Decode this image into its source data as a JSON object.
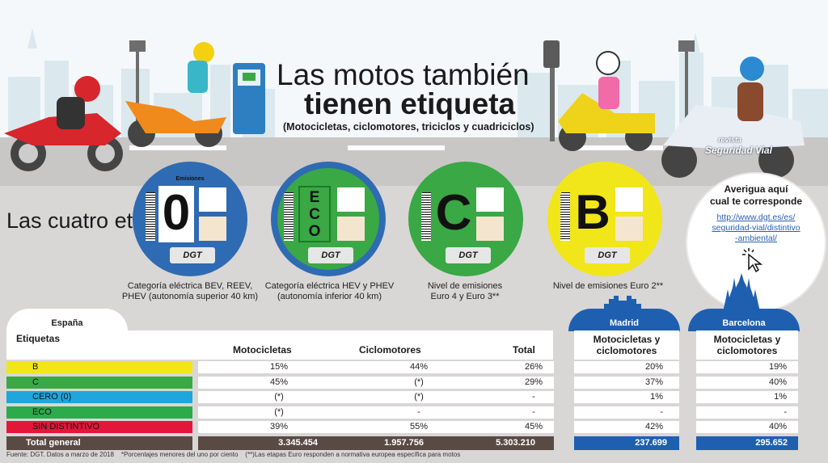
{
  "header": {
    "title_line1": "Las motos también",
    "title_line2": "tienen etiqueta",
    "subtitle": "(Motocicletas, ciclomotores, triciclos y cuadriciclos)"
  },
  "logo": {
    "line1": "revista",
    "line2": "Seguridad Vial"
  },
  "section_title": "Las cuatro etiquetas",
  "badges": [
    {
      "letter": "0",
      "color": "#2e6bb2",
      "inner": "#2e6bb2",
      "top_label": "Emisiones",
      "dgt": "DGT",
      "caption_1": "Categoría eléctrica BEV, REEV,",
      "caption_2": "PHEV (autonomía superior 40 km)"
    },
    {
      "letter": "ECO",
      "color": "#2e6bb2",
      "inner": "#39a845",
      "top_label": "",
      "dgt": "DGT",
      "caption_1": "Categoría eléctrica HEV y PHEV",
      "caption_2": "(autonomía inferior 40 km)"
    },
    {
      "letter": "C",
      "color": "#39a845",
      "inner": "#39a845",
      "top_label": "",
      "dgt": "DGT",
      "caption_1": "Nivel de emisiones",
      "caption_2": "Euro 4 y Euro 3**"
    },
    {
      "letter": "B",
      "color": "#f1e61a",
      "inner": "#f1e61a",
      "top_label": "",
      "dgt": "DGT",
      "caption_1": "Nivel de emisiones Euro 2**",
      "caption_2": ""
    }
  ],
  "info": {
    "question_1": "Averigua aquí",
    "question_2": "cual te corresponde",
    "link_1": "http://www.dgt.es/es/",
    "link_2": "seguridad-vial/distintivo",
    "link_3": "-ambiental/"
  },
  "tabs": {
    "spain": "España",
    "madrid": "Madrid",
    "barcelona": "Barcelona"
  },
  "table": {
    "label_header": "Etiquetas",
    "col_moto": "Motocicletas",
    "col_ciclo": "Ciclomotores",
    "col_total": "Total",
    "madrid_header_1": "Motocicletas y",
    "madrid_header_2": "ciclomotores",
    "barcelona_header_1": "Motocicletas y",
    "barcelona_header_2": "ciclomotores",
    "rows": [
      {
        "label": "B",
        "color": "#f1e61a",
        "moto": "15%",
        "ciclo": "44%",
        "total": "26%",
        "madrid": "20%",
        "barcelona": "19%"
      },
      {
        "label": "C",
        "color": "#39a845",
        "moto": "45%",
        "ciclo": "(*)",
        "total": "29%",
        "madrid": "37%",
        "barcelona": "40%"
      },
      {
        "label": "CERO (0)",
        "color": "#1fa6dd",
        "moto": "(*)",
        "ciclo": "(*)",
        "total": "-",
        "madrid": "1%",
        "barcelona": "1%"
      },
      {
        "label": "ECO",
        "color": "#2bab4a",
        "moto": "(*)",
        "ciclo": "-",
        "total": "-",
        "madrid": "-",
        "barcelona": "-"
      },
      {
        "label": "SIN DISTINTIVO",
        "color": "#e3173a",
        "moto": "39%",
        "ciclo": "55%",
        "total": "45%",
        "madrid": "42%",
        "barcelona": "40%"
      }
    ],
    "total": {
      "label": "Total general",
      "moto": "3.345.454",
      "ciclo": "1.957.756",
      "total": "5.303.210",
      "madrid": "237.699",
      "barcelona": "295.652"
    }
  },
  "footnote": {
    "source": "Fuente: DGT. Datos a marzo de 2018",
    "note1": "*Porcentajes menores del uno por ciento",
    "note2": "(**)Las etapas Euro responden a normativa europea específica para motos"
  },
  "colors": {
    "dark": "#5a4a44",
    "blue": "#1f5fb0",
    "road": "#c9c6c6",
    "background": "#d9d6d6"
  }
}
